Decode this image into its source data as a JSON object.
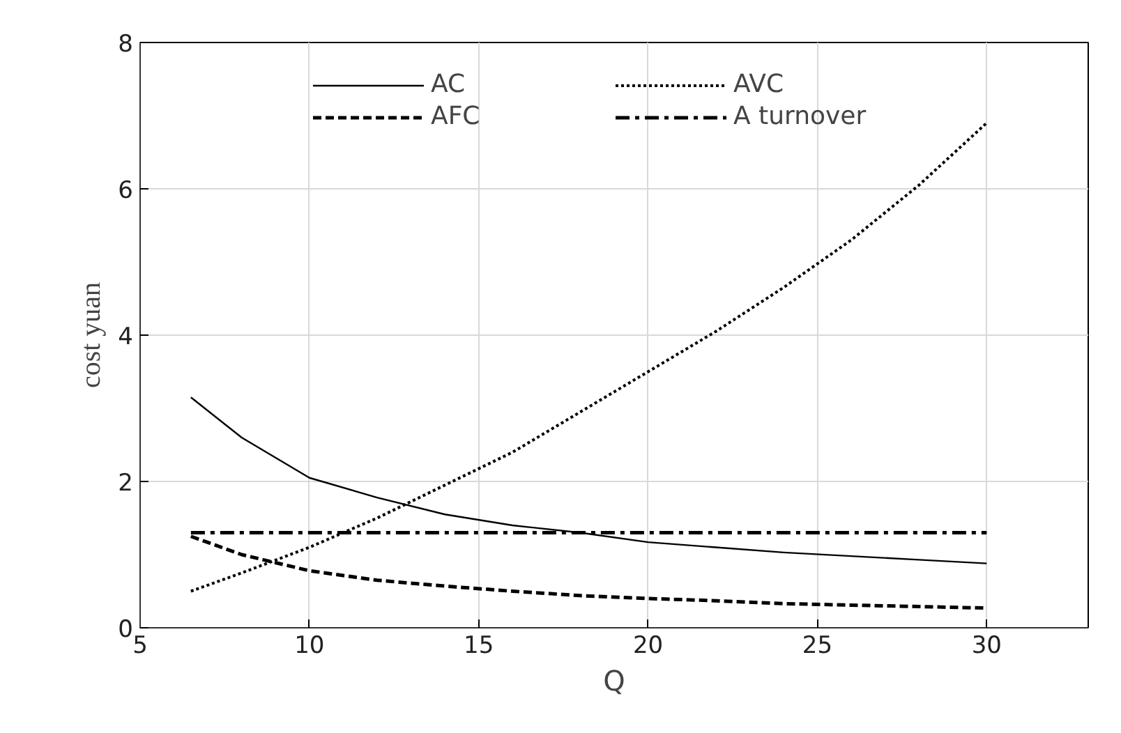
{
  "chart_data": {
    "type": "line",
    "xlabel": "Q",
    "ylabel": "cost yuan",
    "xlim": [
      5,
      33
    ],
    "ylim": [
      0,
      8
    ],
    "xticks": [
      5,
      10,
      15,
      20,
      25,
      30
    ],
    "yticks": [
      0,
      2,
      4,
      6,
      8
    ],
    "grid": true,
    "legend": "top",
    "x": [
      6.5,
      8,
      10,
      12,
      14,
      16,
      18,
      20,
      22,
      24,
      26,
      28,
      30
    ],
    "series": [
      {
        "name": "AC",
        "color": "#000000",
        "line_style": "solid",
        "values": [
          3.15,
          2.6,
          2.05,
          1.78,
          1.55,
          1.4,
          1.3,
          1.17,
          1.1,
          1.03,
          0.98,
          0.93,
          0.88
        ]
      },
      {
        "name": "AFC",
        "color": "#000000",
        "line_style": "dashed",
        "values": [
          1.25,
          1.0,
          0.78,
          0.65,
          0.57,
          0.5,
          0.44,
          0.4,
          0.37,
          0.33,
          0.31,
          0.29,
          0.27
        ]
      },
      {
        "name": "AVC",
        "color": "#000000",
        "line_style": "dotted",
        "values": [
          0.5,
          0.75,
          1.1,
          1.5,
          1.95,
          2.4,
          2.95,
          3.5,
          4.05,
          4.65,
          5.3,
          6.05,
          6.9
        ]
      },
      {
        "name": "A turnover",
        "color": "#000000",
        "line_style": "dashdot",
        "values": [
          1.3,
          1.3,
          1.3,
          1.3,
          1.3,
          1.3,
          1.3,
          1.3,
          1.3,
          1.3,
          1.3,
          1.3,
          1.3
        ]
      }
    ]
  }
}
